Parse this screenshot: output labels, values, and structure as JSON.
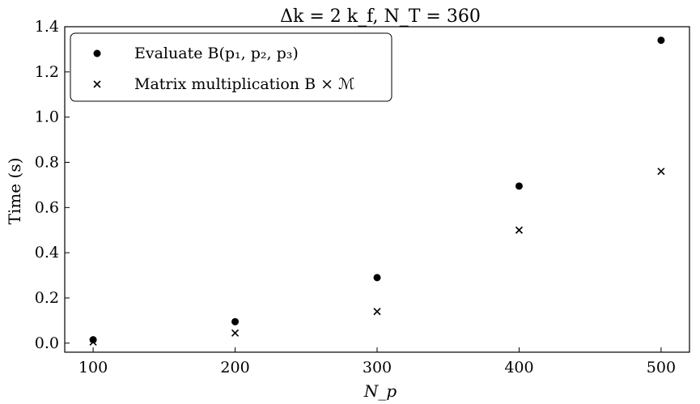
{
  "chart_data": {
    "type": "scatter",
    "title": "Δk = 2 k_f,  N_T = 360",
    "xlabel": "N_p",
    "ylabel": "Time (s)",
    "xlim": [
      80,
      520
    ],
    "ylim": [
      -0.04,
      1.4
    ],
    "x_ticks": [
      100,
      200,
      300,
      400,
      500
    ],
    "y_ticks": [
      0.0,
      0.2,
      0.4,
      0.6,
      0.8,
      1.0,
      1.2,
      1.4
    ],
    "x_tick_labels": [
      "100",
      "200",
      "300",
      "400",
      "500"
    ],
    "y_tick_labels": [
      "0.0",
      "0.2",
      "0.4",
      "0.6",
      "0.8",
      "1.0",
      "1.2",
      "1.4"
    ],
    "legend_position": "top-left",
    "grid": false,
    "series": [
      {
        "name": "Evaluate B(p₁, p₂, p₃)",
        "marker": "circle",
        "color": "#000000",
        "x": [
          100,
          200,
          300,
          400,
          500
        ],
        "y": [
          0.015,
          0.095,
          0.29,
          0.695,
          1.34
        ]
      },
      {
        "name": "Matrix multiplication B × ℳ",
        "marker": "x",
        "color": "#000000",
        "x": [
          100,
          200,
          300,
          400,
          500
        ],
        "y": [
          0.005,
          0.045,
          0.14,
          0.5,
          0.76
        ]
      }
    ]
  }
}
